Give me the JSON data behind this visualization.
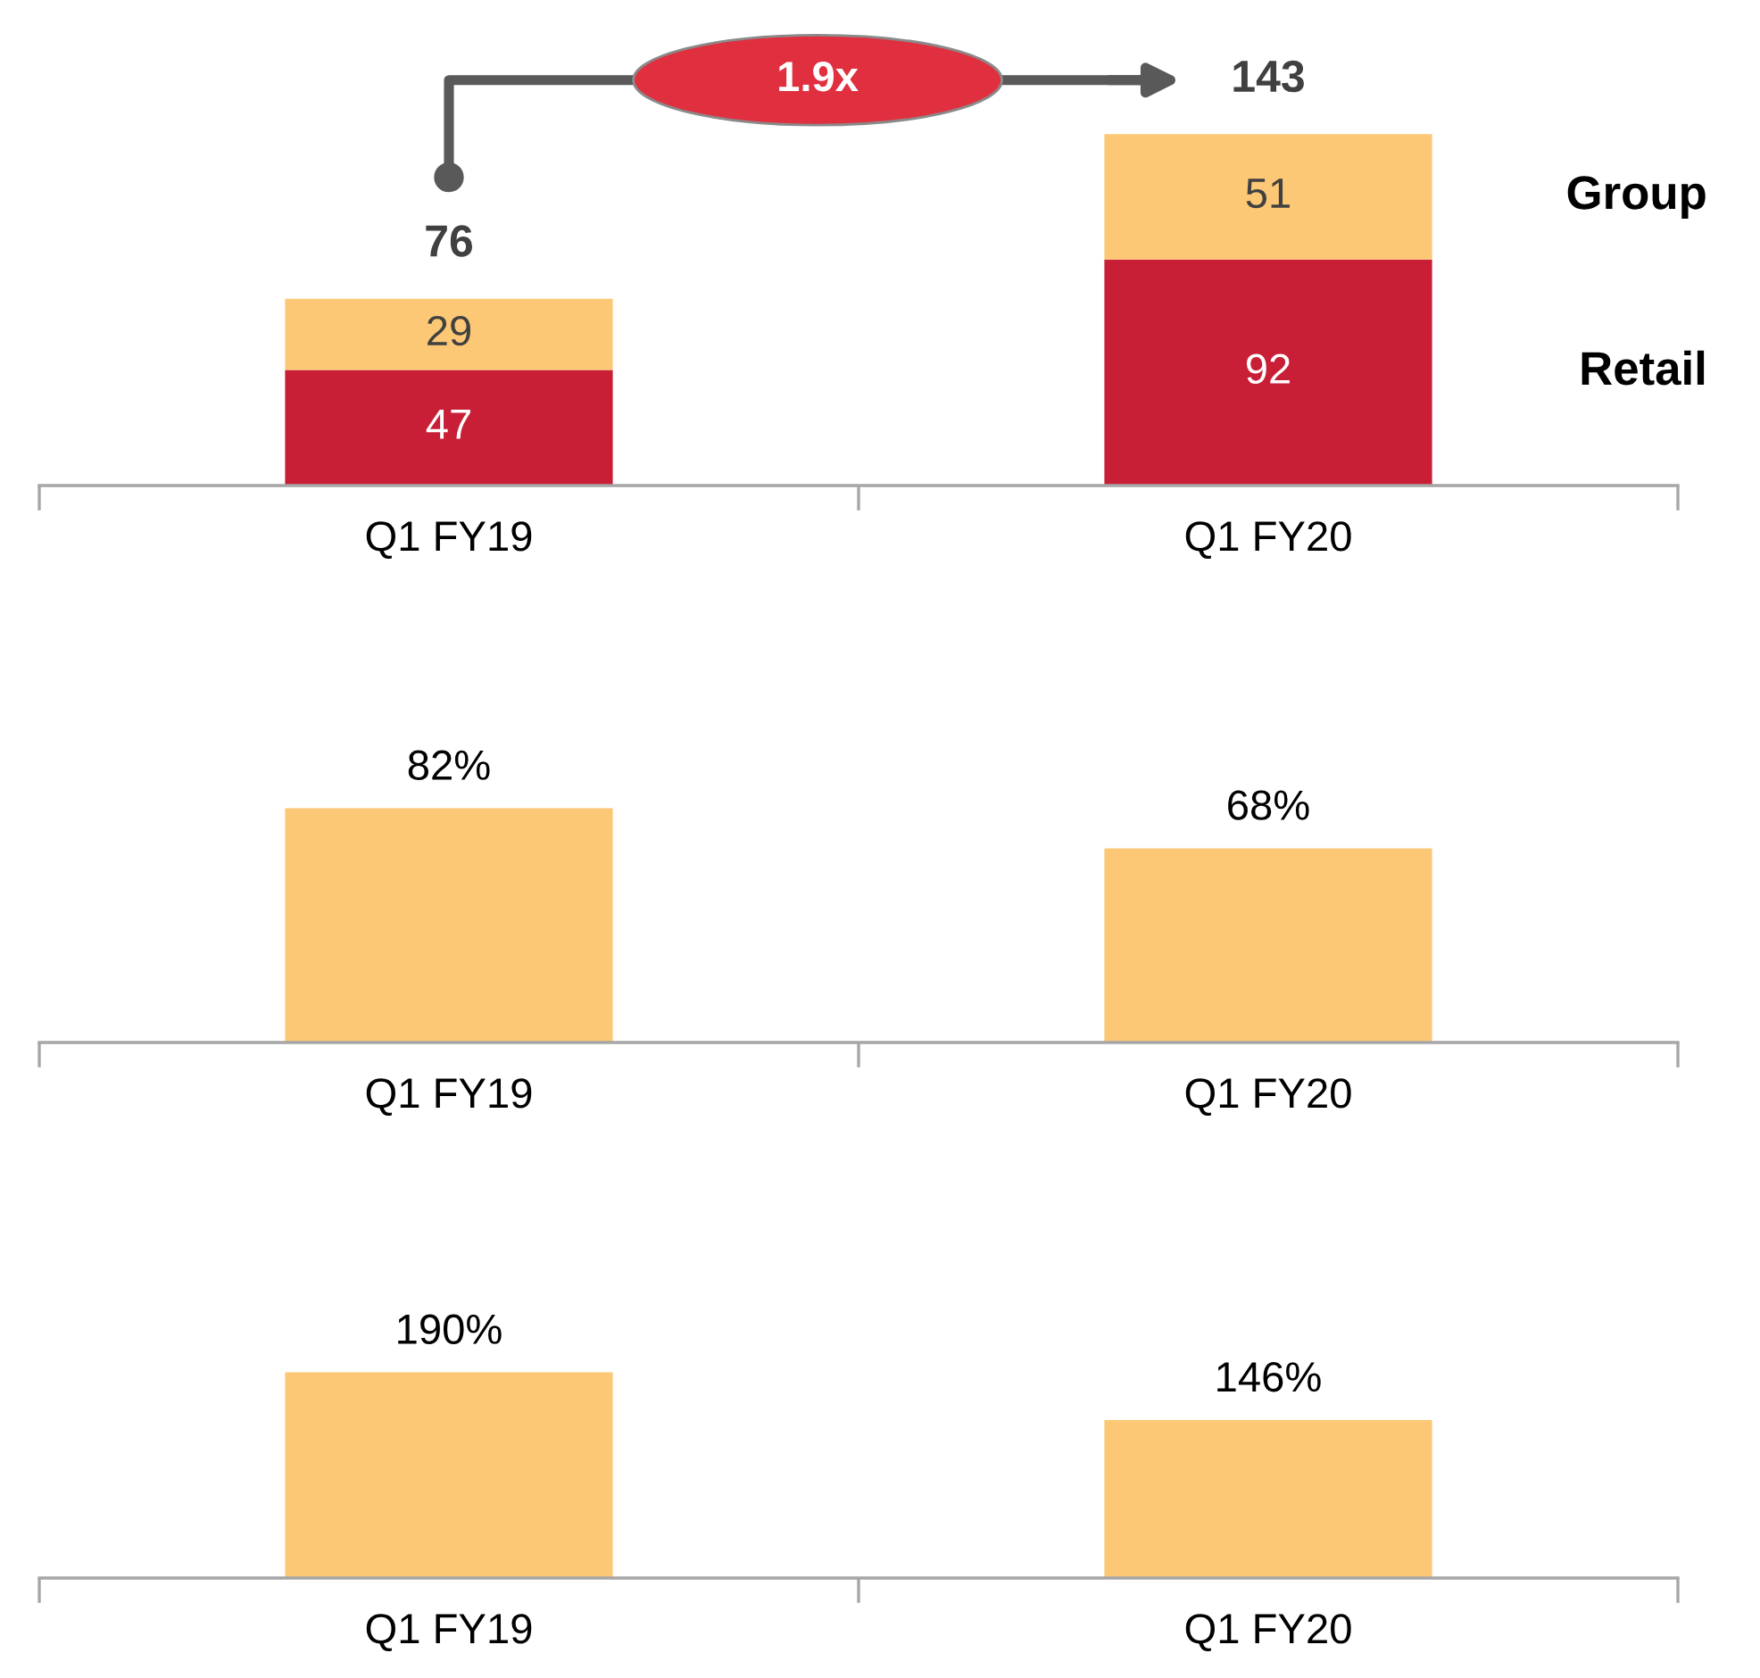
{
  "chart_data": [
    {
      "type": "bar",
      "stacked": true,
      "categories": [
        "Q1 FY19",
        "Q1 FY20"
      ],
      "series": [
        {
          "name": "Retail",
          "color": "#c81e36",
          "values": [
            47,
            92
          ]
        },
        {
          "name": "Group",
          "color": "#fcc876",
          "values": [
            29,
            51
          ]
        }
      ],
      "data_labels": true,
      "totals": [
        "76",
        "143"
      ],
      "annotations": [
        "1.9x"
      ],
      "tick_labels": "x",
      "grid": false,
      "legend": false
    },
    {
      "type": "bar",
      "categories": [
        "Q1 FY19",
        "Q1 FY20"
      ],
      "values": [
        82,
        68
      ],
      "value_labels": [
        "82%",
        "68%"
      ],
      "color": "#fcc876",
      "tick_labels": "x",
      "grid": false,
      "legend": false
    },
    {
      "type": "bar",
      "categories": [
        "Q1 FY19",
        "Q1 FY20"
      ],
      "values": [
        190,
        146
      ],
      "value_labels": [
        "190%",
        "146%"
      ],
      "color": "#fcc876",
      "tick_labels": "x",
      "grid": false,
      "legend": false
    }
  ]
}
